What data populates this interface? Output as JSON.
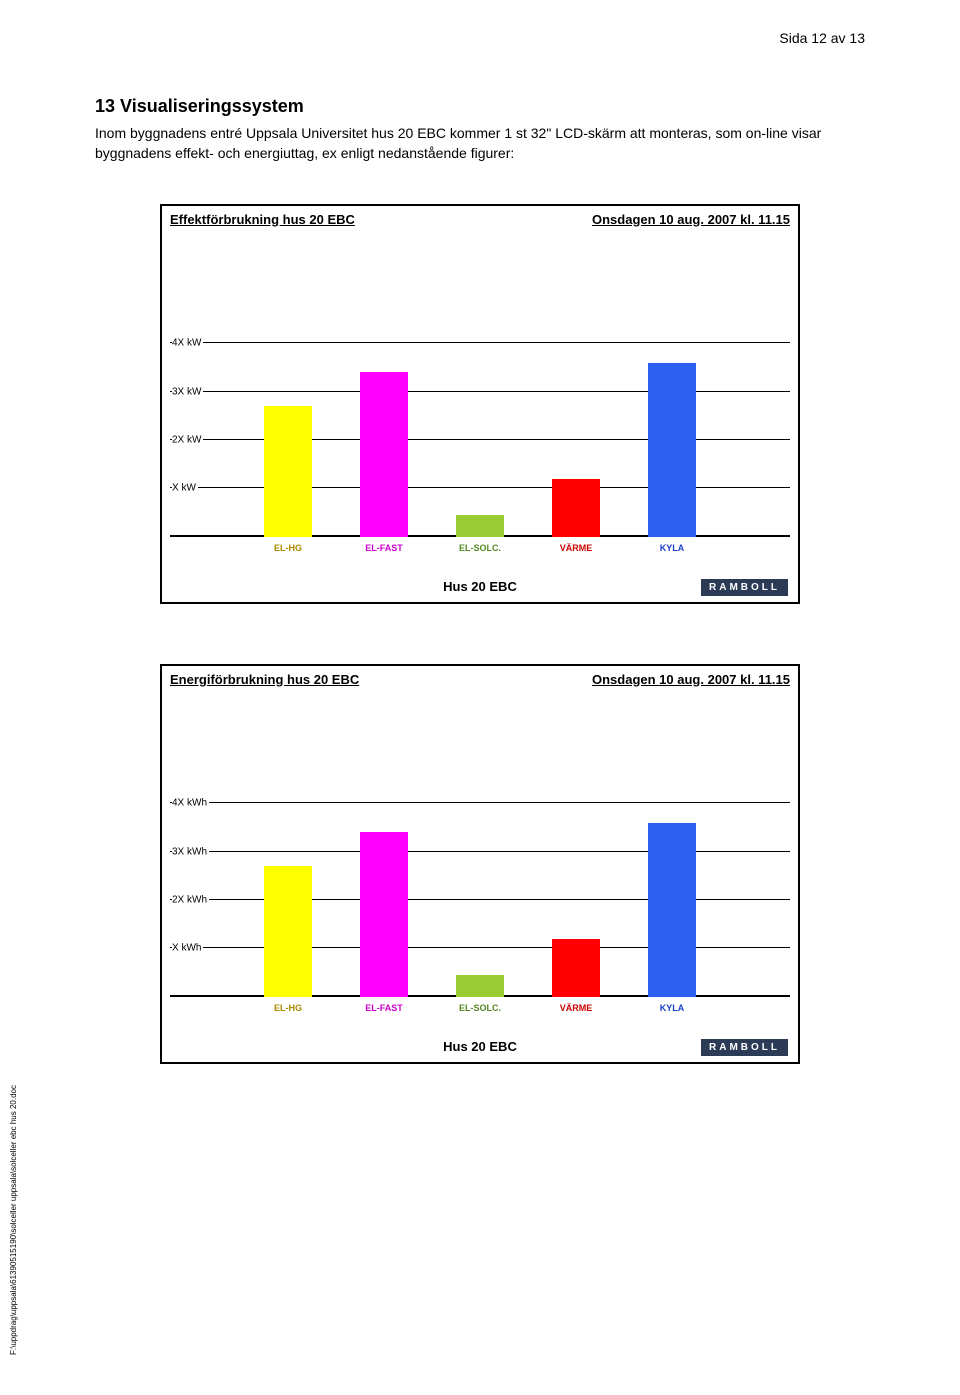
{
  "page": {
    "header": "Sida 12 av 13",
    "section_number": "13",
    "section_title": "13 Visualiseringssystem",
    "body": "Inom byggnadens entré Uppsala Universitet hus 20 EBC kommer 1 st 32\" LCD-skärm att monteras, som on-line visar byggnadens effekt- och energiuttag, ex enligt nedanstående figurer:",
    "footer_path": "F:\\uppdrag\\uppsala\\61390515190\\solceller uppsala\\solceller ebc hus 20.doc"
  },
  "charts": [
    {
      "title_left": "Effektförbrukning hus 20 EBC",
      "title_right": "Onsdagen 10 aug. 2007 kl. 11.15",
      "sub_caption": "Hus 20 EBC",
      "badge": "RAMBOLL",
      "y_unit": "kW",
      "y_ticks": [
        {
          "v": 1,
          "label": "X kW"
        },
        {
          "v": 2,
          "label": "2X kW"
        },
        {
          "v": 3,
          "label": "3X kW"
        },
        {
          "v": 4,
          "label": "4X kW"
        }
      ],
      "y_max": 6,
      "series": [
        {
          "label": "EL-HG",
          "value": 2.7,
          "color": "#ffff00",
          "label_color": "#aa8800"
        },
        {
          "label": "EL-FAST",
          "value": 3.4,
          "color": "#ff00ff",
          "label_color": "#cc00cc"
        },
        {
          "label": "EL-SOLC.",
          "value": 0.45,
          "color": "#99cc33",
          "label_color": "#558822"
        },
        {
          "label": "VÄRME",
          "value": 1.2,
          "color": "#ff0000",
          "label_color": "#cc0000"
        },
        {
          "label": "KYLA",
          "value": 3.6,
          "color": "#2a5ff0",
          "label_color": "#1a3fcc"
        }
      ]
    },
    {
      "title_left": "Energiförbrukning hus 20 EBC",
      "title_right": "Onsdagen 10 aug. 2007 kl. 11.15",
      "sub_caption": "Hus 20 EBC",
      "badge": "RAMBOLL",
      "y_unit": "kWh",
      "y_ticks": [
        {
          "v": 1,
          "label": "X kWh"
        },
        {
          "v": 2,
          "label": "2X kWh"
        },
        {
          "v": 3,
          "label": "3X kWh"
        },
        {
          "v": 4,
          "label": "4X kWh"
        }
      ],
      "y_max": 6,
      "series": [
        {
          "label": "EL-HG",
          "value": 2.7,
          "color": "#ffff00",
          "label_color": "#aa8800"
        },
        {
          "label": "EL-FAST",
          "value": 3.4,
          "color": "#ff00ff",
          "label_color": "#cc00cc"
        },
        {
          "label": "EL-SOLC.",
          "value": 0.45,
          "color": "#99cc33",
          "label_color": "#558822"
        },
        {
          "label": "VÄRME",
          "value": 1.2,
          "color": "#ff0000",
          "label_color": "#cc0000"
        },
        {
          "label": "KYLA",
          "value": 3.6,
          "color": "#2a5ff0",
          "label_color": "#1a3fcc"
        }
      ]
    }
  ],
  "styling": {
    "page_bg": "#ffffff",
    "text_color": "#000000",
    "chart_border": "#000000",
    "gridline_color": "#000000",
    "badge_bg": "#2b3a55",
    "badge_fg": "#ffffff",
    "title_fontsize": 18,
    "body_fontsize": 14,
    "chart_header_fontsize": 13,
    "ylabel_fontsize": 10,
    "xlabel_fontsize": 9
  }
}
